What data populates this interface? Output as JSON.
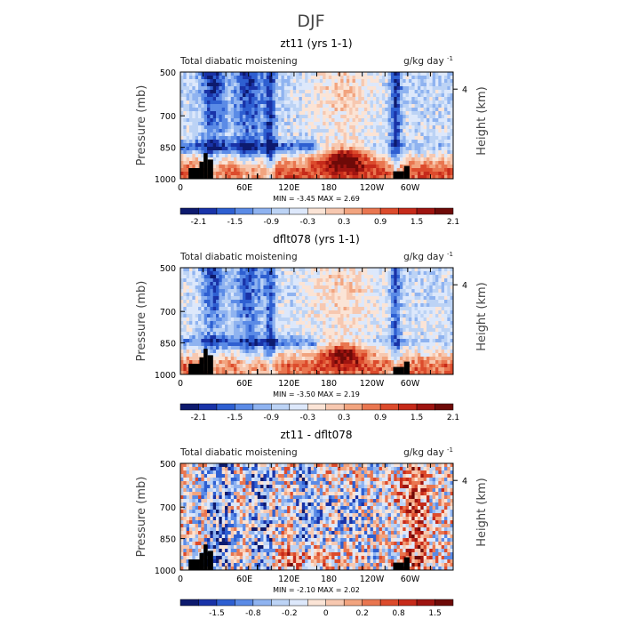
{
  "figure_title": "DJF",
  "chart_data": [
    {
      "type": "heatmap",
      "title": "zt11 (yrs 1-1)",
      "left_label": "Total diabatic moistening",
      "units": "g/kg day",
      "units_exp": "-1",
      "ylabel": "Pressure (mb)",
      "y2label": "Height (km)",
      "y2_ticks": [
        "4"
      ],
      "yticks": [
        "500",
        "700",
        "850",
        "1000"
      ],
      "xticks": [
        "0",
        "60E",
        "120E",
        "180",
        "120W",
        "60W"
      ],
      "minmax": "MIN =   -3.45   MAX =    2.69",
      "colorbar_labels": [
        "-2.1",
        "-1.5",
        "-0.9",
        "-0.3",
        "0.3",
        "0.9",
        "1.5",
        "2.1"
      ],
      "colorbar_colors": [
        "#0d1a6e",
        "#1933a8",
        "#2e5fd1",
        "#5b8be6",
        "#8fb3f0",
        "#bcd3f5",
        "#dde8fb",
        "#fbe4d6",
        "#f7c8b0",
        "#f2a47f",
        "#e97650",
        "#dc4b2c",
        "#c62a1a",
        "#9e1410",
        "#6e0a08"
      ],
      "ylim": [
        1000,
        500
      ],
      "xlim": [
        0,
        360
      ]
    },
    {
      "type": "heatmap",
      "title": "dflt078 (yrs 1-1)",
      "left_label": "Total diabatic moistening",
      "units": "g/kg day",
      "units_exp": "-1",
      "ylabel": "Pressure (mb)",
      "y2label": "Height (km)",
      "y2_ticks": [
        "4"
      ],
      "yticks": [
        "500",
        "700",
        "850",
        "1000"
      ],
      "xticks": [
        "0",
        "60E",
        "120E",
        "180",
        "120W",
        "60W"
      ],
      "minmax": "MIN =   -3.50   MAX =    2.19",
      "colorbar_labels": [
        "-2.1",
        "-1.5",
        "-0.9",
        "-0.3",
        "0.3",
        "0.9",
        "1.5",
        "2.1"
      ],
      "colorbar_colors": [
        "#0d1a6e",
        "#1933a8",
        "#2e5fd1",
        "#5b8be6",
        "#8fb3f0",
        "#bcd3f5",
        "#dde8fb",
        "#fbe4d6",
        "#f7c8b0",
        "#f2a47f",
        "#e97650",
        "#dc4b2c",
        "#c62a1a",
        "#9e1410",
        "#6e0a08"
      ],
      "ylim": [
        1000,
        500
      ],
      "xlim": [
        0,
        360
      ]
    },
    {
      "type": "heatmap",
      "title": "zt11 - dflt078",
      "left_label": "Total diabatic moistening",
      "units": "g/kg day",
      "units_exp": "-1",
      "ylabel": "Pressure (mb)",
      "y2label": "Height (km)",
      "y2_ticks": [
        "4"
      ],
      "yticks": [
        "500",
        "700",
        "850",
        "1000"
      ],
      "xticks": [
        "0",
        "60E",
        "120E",
        "180",
        "120W",
        "60W"
      ],
      "minmax": "MIN =   -2.10   MAX =    2.02",
      "colorbar_labels": [
        "-1.5",
        "-0.8",
        "-0.2",
        "0",
        "0.2",
        "0.8",
        "1.5"
      ],
      "colorbar_colors": [
        "#0d1a6e",
        "#1933a8",
        "#2e5fd1",
        "#5b8be6",
        "#8fb3f0",
        "#bcd3f5",
        "#dde8fb",
        "#fbe4d6",
        "#f7c8b0",
        "#f2a47f",
        "#e97650",
        "#dc4b2c",
        "#c62a1a",
        "#9e1410",
        "#6e0a08"
      ],
      "ylim": [
        1000,
        500
      ],
      "xlim": [
        0,
        360
      ]
    }
  ]
}
